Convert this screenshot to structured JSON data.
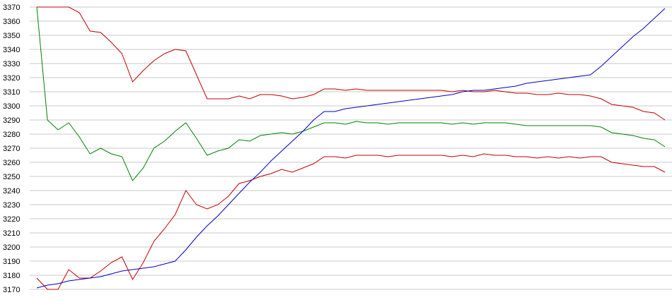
{
  "chart_data": {
    "type": "line",
    "categories": [
      null,
      null,
      null,
      null,
      null,
      null,
      null,
      null,
      null,
      null,
      null,
      null,
      null,
      null,
      null,
      null,
      null,
      null,
      null,
      null,
      null,
      null,
      null,
      null,
      null,
      null,
      null,
      null,
      null,
      null,
      null,
      null,
      null,
      null,
      null,
      null,
      null,
      null,
      null,
      null,
      null,
      null,
      null,
      null,
      null,
      null,
      null,
      null,
      null,
      null,
      null,
      null,
      null,
      null,
      null,
      null,
      null,
      null,
      null,
      null
    ],
    "series": [
      {
        "color": "#c00000",
        "values": [
          3370,
          3370,
          3370,
          3370,
          3366,
          3353,
          3352,
          3345,
          3337,
          3317,
          3325,
          3332,
          3337,
          3340,
          3339,
          3322,
          3305,
          3305,
          3305,
          3307,
          3305,
          3308,
          3308,
          3307,
          3305,
          3306,
          3308,
          3312,
          3312,
          3311,
          3312,
          3311,
          3311,
          3311,
          3311,
          3311,
          3311,
          3311,
          3311,
          3310,
          3311,
          3310,
          3310,
          3311,
          3310,
          3309,
          3309,
          3308,
          3308,
          3309,
          3308,
          3308,
          3307,
          3305,
          3301,
          3300,
          3299,
          3296,
          3295,
          3290
        ]
      },
      {
        "color": "#008000",
        "values": [
          3370,
          3290,
          3283,
          3288,
          3278,
          3266,
          3270,
          3266,
          3264,
          3247,
          3256,
          3270,
          3275,
          3282,
          3288,
          3277,
          3265,
          3268,
          3270,
          3276,
          3275,
          3279,
          3280,
          3281,
          3280,
          3282,
          3285,
          3288,
          3288,
          3287,
          3289,
          3288,
          3288,
          3287,
          3288,
          3288,
          3288,
          3288,
          3288,
          3287,
          3288,
          3287,
          3288,
          3288,
          3288,
          3287,
          3286,
          3286,
          3286,
          3286,
          3286,
          3286,
          3286,
          3285,
          3281,
          3280,
          3279,
          3277,
          3276,
          3271
        ]
      },
      {
        "color": "#c00000",
        "values": [
          3178,
          3170,
          3170,
          3184,
          3178,
          3178,
          3183,
          3189,
          3193,
          3177,
          3189,
          3204,
          3213,
          3223,
          3240,
          3230,
          3227,
          3230,
          3236,
          3245,
          3247,
          3250,
          3252,
          3255,
          3253,
          3256,
          3259,
          3264,
          3264,
          3263,
          3265,
          3265,
          3265,
          3264,
          3265,
          3265,
          3265,
          3265,
          3265,
          3264,
          3265,
          3264,
          3266,
          3265,
          3265,
          3264,
          3264,
          3263,
          3264,
          3263,
          3264,
          3263,
          3264,
          3264,
          3260,
          3259,
          3258,
          3257,
          3257,
          3253
        ]
      },
      {
        "color": "#0000c0",
        "values": [
          3171,
          3173,
          3174,
          3176,
          3177,
          3178,
          3179,
          3181,
          3183,
          3184,
          3185,
          3186,
          3188,
          3190,
          3198,
          3207,
          3215,
          3222,
          3230,
          3238,
          3246,
          3253,
          3261,
          3268,
          3275,
          3282,
          3290,
          3296,
          3296,
          3298,
          3299,
          3300,
          3301,
          3302,
          3303,
          3304,
          3305,
          3306,
          3307,
          3308,
          3310,
          3311,
          3311,
          3312,
          3313,
          3314,
          3316,
          3317,
          3318,
          3319,
          3320,
          3321,
          3322,
          3328,
          3335,
          3342,
          3349,
          3355,
          3362,
          3369
        ]
      }
    ],
    "ylim": [
      3170,
      3370
    ],
    "yticks": [
      3170,
      3180,
      3190,
      3200,
      3210,
      3220,
      3230,
      3240,
      3250,
      3260,
      3270,
      3280,
      3290,
      3300,
      3310,
      3320,
      3330,
      3340,
      3350,
      3360,
      3370
    ],
    "grid": true
  }
}
